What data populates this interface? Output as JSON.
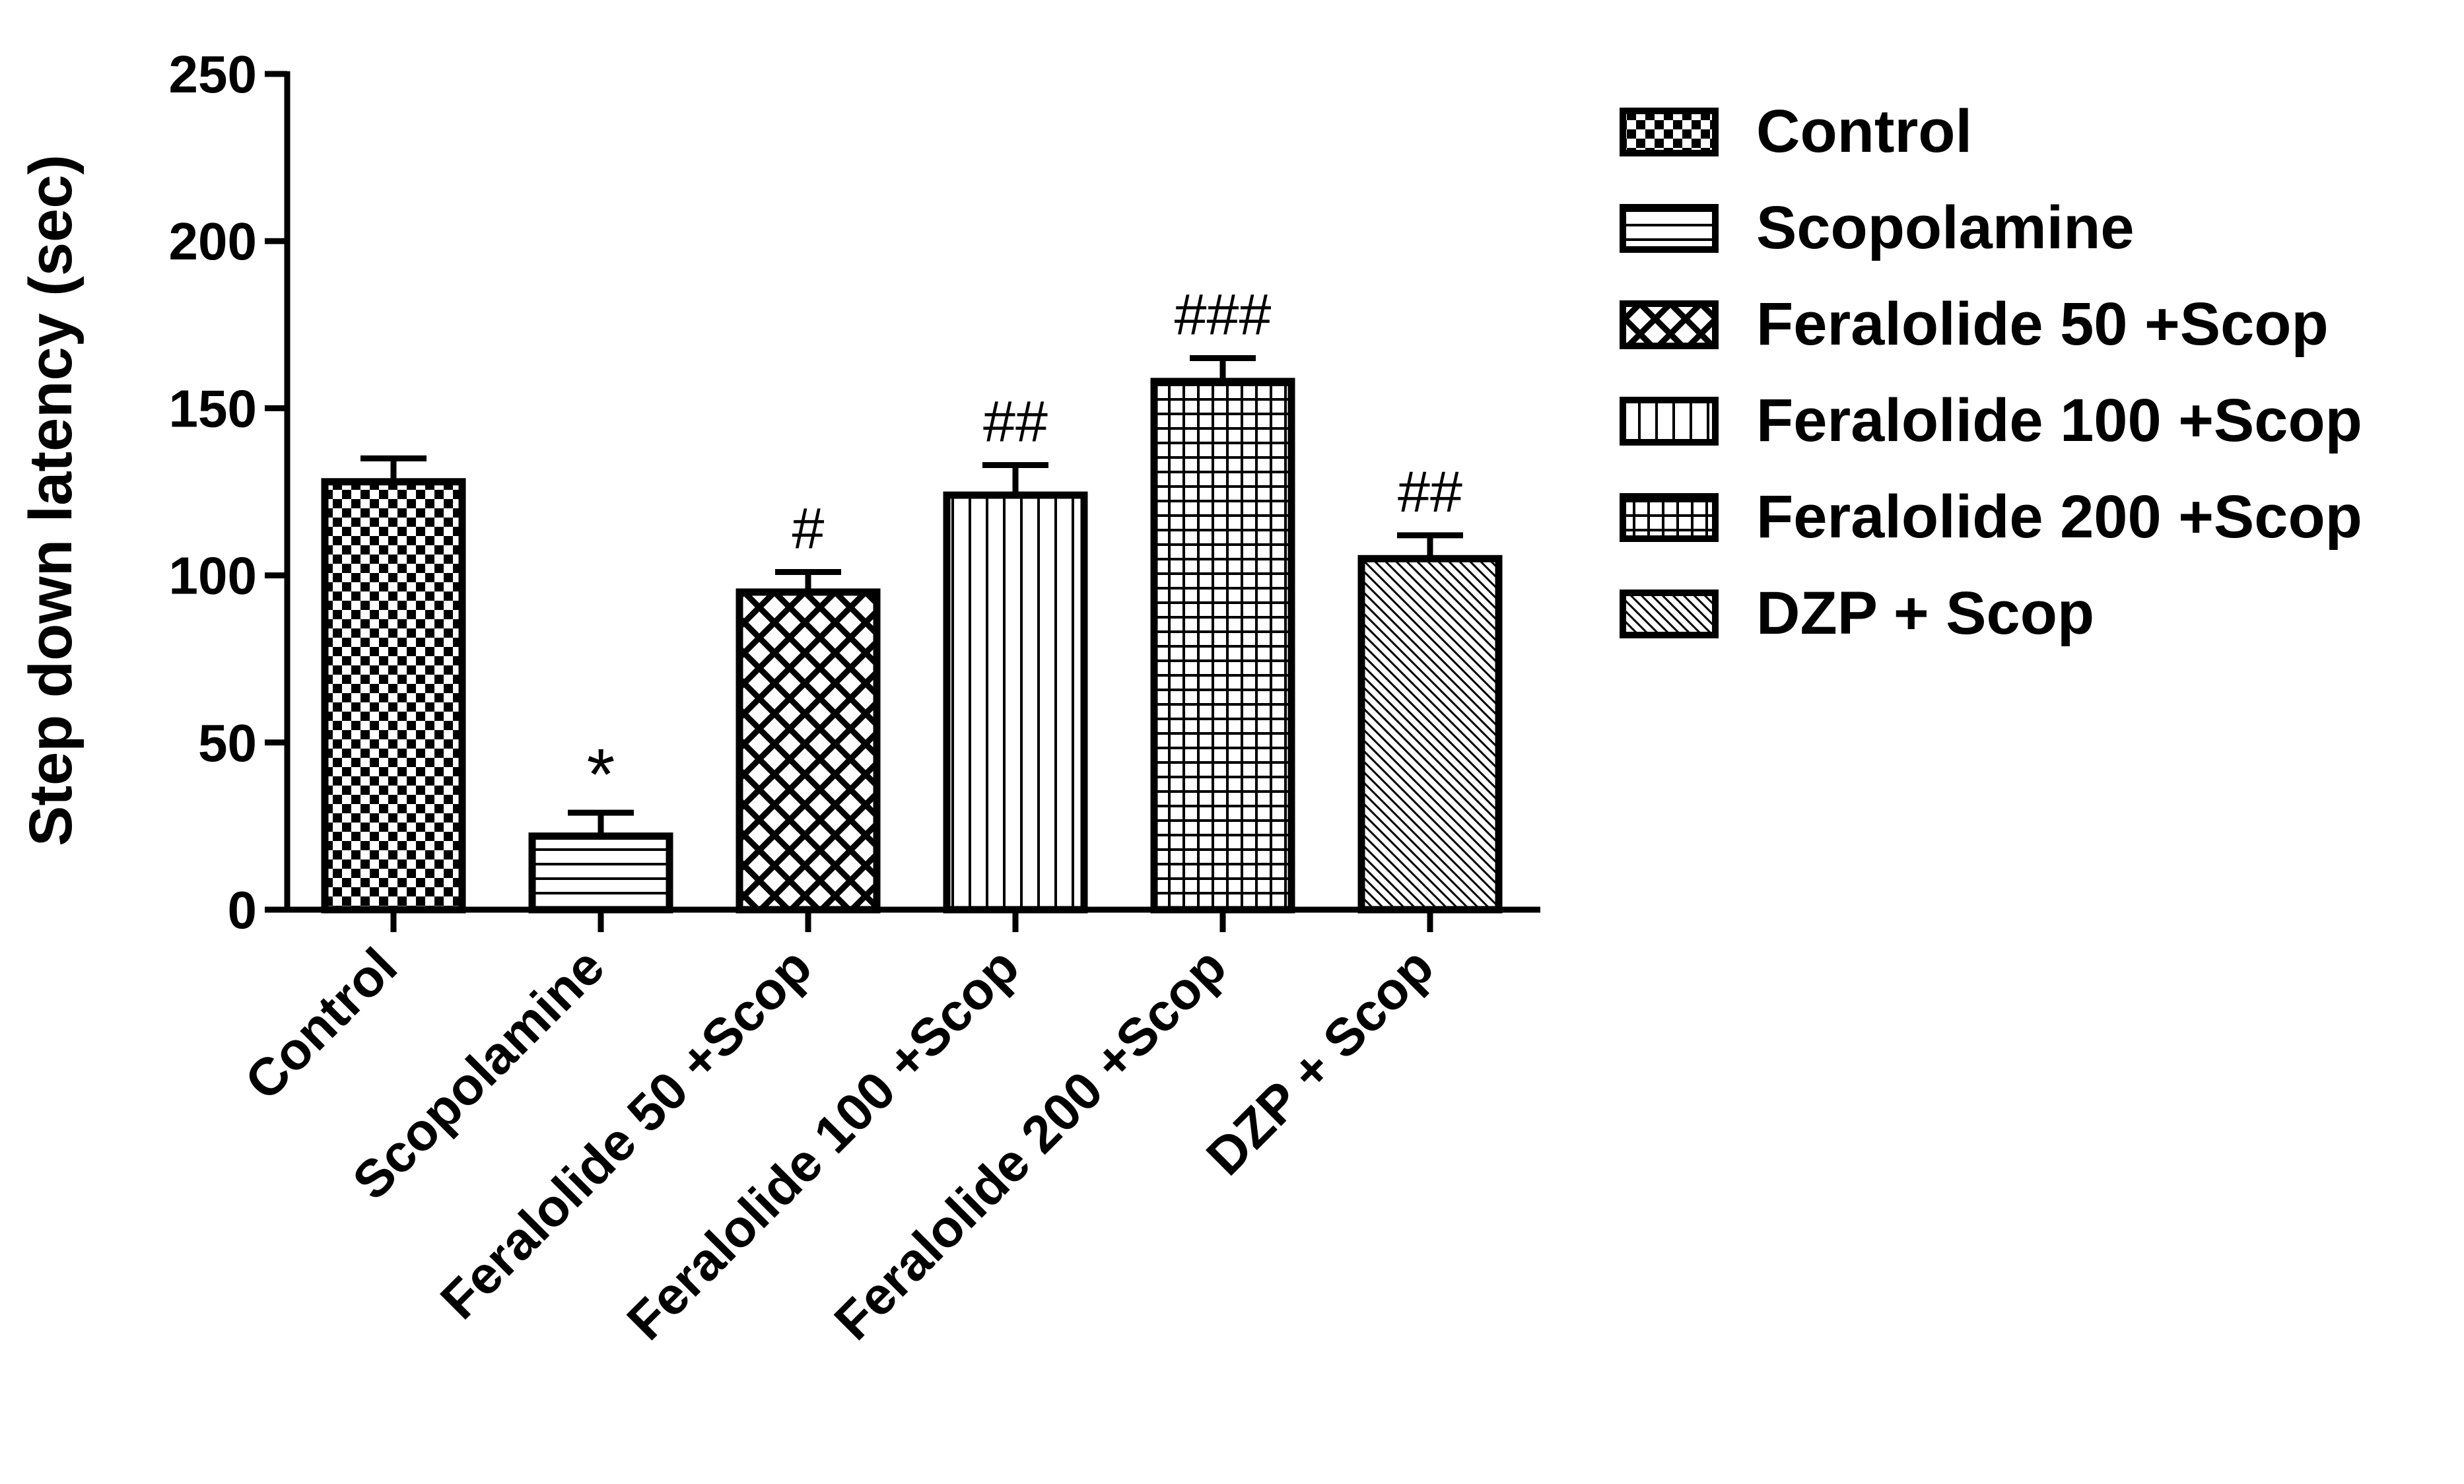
{
  "chart_data": {
    "type": "bar",
    "title": "",
    "xlabel": "",
    "ylabel": "Step down latency (sec)",
    "ylim": [
      0,
      250
    ],
    "yticks": [
      0,
      50,
      100,
      150,
      200,
      250
    ],
    "grid": false,
    "legend_position": "right",
    "categories": [
      "Control",
      "Scopolamine",
      "Feralolide 50 +Scop",
      "Feralolide 100 +Scop",
      "Feralolide 200 +Scop",
      "DZP  + Scop"
    ],
    "series": [
      {
        "name": "Step down latency",
        "values": [
          128,
          22,
          95,
          124,
          158,
          105
        ],
        "errors": [
          7,
          7,
          6,
          9,
          7,
          7
        ]
      }
    ],
    "patterns": [
      "checker",
      "hlines",
      "crosshatch",
      "vlines",
      "grid",
      "diagonal"
    ],
    "annotations": [
      "",
      "*",
      "#",
      "##",
      "###",
      "##"
    ],
    "legend": [
      "Control",
      "Scopolamine",
      "Feralolide 50 +Scop",
      "Feralolide 100 +Scop",
      "Feralolide 200 +Scop",
      "DZP  + Scop"
    ]
  }
}
